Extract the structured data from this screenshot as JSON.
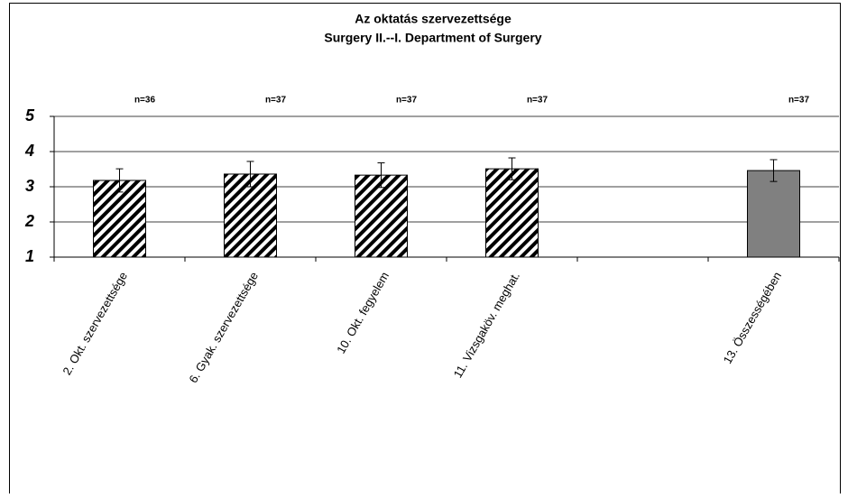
{
  "chart_data": {
    "type": "bar",
    "title": "Az oktatás szervezettsége",
    "subtitle": "Surgery II.--I. Department of Surgery",
    "categories": [
      "2. Okt. szervezettsége",
      "6. Gyak. szervezettsége",
      "10. Okt. fegyelem",
      "11. Vizsgaköv. meghat.",
      null,
      "13. Összességében"
    ],
    "values": [
      3.18,
      3.36,
      3.33,
      3.51,
      null,
      3.46
    ],
    "errors": [
      0.33,
      0.36,
      0.35,
      0.31,
      null,
      0.31
    ],
    "annotations": [
      "n=36",
      "n=37",
      "n=37",
      "n=37",
      null,
      "n=37"
    ],
    "colors": [
      "#000000",
      "#000000",
      "#000000",
      "#000000",
      null,
      "#808080"
    ],
    "patterns": [
      "hatch",
      "hatch",
      "hatch",
      "hatch",
      null,
      "solid"
    ],
    "ylim": [
      1,
      5
    ],
    "yticks": [
      1,
      2,
      3,
      4,
      5
    ],
    "grid": true
  }
}
